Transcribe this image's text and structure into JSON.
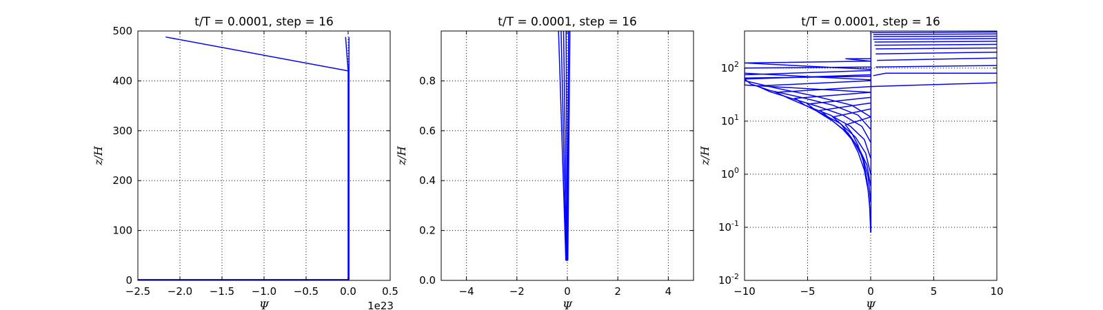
{
  "chart_data": [
    {
      "type": "line",
      "title": "t/T = 0.0001, step = 16",
      "xlabel": "Ψ",
      "ylabel": "z/H",
      "xlim": [
        -2.5,
        0.5
      ],
      "ylim": [
        0,
        500
      ],
      "x_offset_text": "1e23",
      "xticks": [
        -2.5,
        -2.0,
        -1.5,
        -1.0,
        -0.5,
        0.0,
        0.5
      ],
      "xtick_labels": [
        "−2.5",
        "−2.0",
        "−1.5",
        "−1.0",
        "−0.5",
        "0.0",
        "0.5"
      ],
      "yticks": [
        0,
        100,
        200,
        300,
        400,
        500
      ],
      "ytick_labels": [
        "0",
        "100",
        "200",
        "300",
        "400",
        "500"
      ],
      "yscale": "linear",
      "grid": true,
      "series": [
        {
          "x": [
            -2.17,
            0.0,
            0.0
          ],
          "y": [
            488,
            420,
            0
          ]
        },
        {
          "x": [
            -0.03,
            0.0
          ],
          "y": [
            488,
            420
          ]
        },
        {
          "x": [
            0.01,
            0.01
          ],
          "y": [
            488,
            0
          ]
        },
        {
          "x": [
            -2.5,
            0.0
          ],
          "y": [
            1.5,
            1.5
          ]
        }
      ]
    },
    {
      "type": "line",
      "title": "t/T = 0.0001, step = 16",
      "xlabel": "Ψ",
      "ylabel": "z/H",
      "xlim": [
        -5,
        5
      ],
      "ylim": [
        0,
        1.0
      ],
      "xticks": [
        -4,
        -2,
        0,
        2,
        4
      ],
      "xtick_labels": [
        "−4",
        "−2",
        "0",
        "2",
        "4"
      ],
      "yticks": [
        0.0,
        0.2,
        0.4,
        0.6,
        0.8
      ],
      "ytick_labels": [
        "0.0",
        "0.2",
        "0.4",
        "0.6",
        "0.8"
      ],
      "yscale": "linear",
      "grid": true,
      "series": [
        {
          "x": [
            -0.35,
            -0.06
          ],
          "y": [
            1.0,
            0.08
          ]
        },
        {
          "x": [
            -0.25,
            -0.04
          ],
          "y": [
            1.0,
            0.08
          ]
        },
        {
          "x": [
            -0.15,
            -0.02
          ],
          "y": [
            1.0,
            0.08
          ]
        },
        {
          "x": [
            -0.05,
            0.0
          ],
          "y": [
            1.0,
            0.08
          ]
        },
        {
          "x": [
            0.05,
            0.0
          ],
          "y": [
            1.0,
            0.08
          ]
        },
        {
          "x": [
            0.1,
            0.02
          ],
          "y": [
            1.0,
            0.08
          ]
        },
        {
          "x": [
            -0.06,
            0.02
          ],
          "y": [
            0.08,
            0.08
          ]
        }
      ]
    },
    {
      "type": "line",
      "title": "t/T = 0.0001, step = 16",
      "xlabel": "Ψ",
      "ylabel": "z/H",
      "xlim": [
        -10,
        10
      ],
      "ylim": [
        0.01,
        500
      ],
      "xticks": [
        -10,
        -5,
        0,
        5,
        10
      ],
      "xtick_labels": [
        "−10",
        "−5",
        "0",
        "5",
        "10"
      ],
      "yticks": [
        0.01,
        0.1,
        1,
        10,
        100
      ],
      "ytick_labels": [
        [
          "10",
          "-2"
        ],
        [
          "10",
          "-1"
        ],
        [
          "10",
          "0"
        ],
        [
          "10",
          "1"
        ],
        [
          "10",
          "2"
        ]
      ],
      "yscale": "log",
      "grid": true,
      "series": [
        {
          "x": [
            0.02,
            0.02
          ],
          "y": [
            0.08,
            500
          ]
        },
        {
          "x": [
            0,
            -0.1,
            -0.3,
            -0.6,
            -1.0,
            -1.5,
            -2.0,
            0
          ],
          "y": [
            0.08,
            0.3,
            0.8,
            1.8,
            3.5,
            6.0,
            8.5,
            12
          ]
        },
        {
          "x": [
            0,
            -0.2,
            -0.5,
            -1.0,
            -1.6,
            -2.3,
            -3.0,
            0
          ],
          "y": [
            0.15,
            0.5,
            1.2,
            2.6,
            5.0,
            8.5,
            12,
            17
          ]
        },
        {
          "x": [
            0,
            -0.2,
            -0.6,
            -1.3,
            -2.2,
            -3.2,
            -4.0,
            0
          ],
          "y": [
            0.3,
            0.9,
            2.0,
            4.0,
            7.0,
            11,
            16,
            22
          ]
        },
        {
          "x": [
            0,
            -0.3,
            -0.9,
            -1.8,
            -3.0,
            -4.2,
            -5.0,
            0
          ],
          "y": [
            0.6,
            1.5,
            3.0,
            6.0,
            10,
            15,
            21,
            28
          ]
        },
        {
          "x": [
            0,
            -0.4,
            -1.2,
            -2.4,
            -3.9,
            -5.2,
            -6.0,
            0
          ],
          "y": [
            1.0,
            2.5,
            5.0,
            9.0,
            14,
            20,
            27,
            35
          ]
        },
        {
          "x": [
            0,
            -0.5,
            -1.6,
            -3.2,
            -5.0,
            -6.5,
            -7.5,
            0
          ],
          "y": [
            2.0,
            4.5,
            8.0,
            13,
            19,
            27,
            35,
            45
          ]
        },
        {
          "x": [
            0,
            -0.7,
            -2.2,
            -4.2,
            -6.3,
            -8.0,
            -9.0,
            0
          ],
          "y": [
            4.0,
            8.0,
            13,
            19,
            27,
            36,
            46,
            58
          ]
        },
        {
          "x": [
            0,
            -1.0,
            -3.0,
            -5.5,
            -8.0,
            -9.5,
            -10,
            0
          ],
          "y": [
            7.0,
            13,
            20,
            28,
            38,
            50,
            62,
            75
          ]
        },
        {
          "x": [
            0,
            -1.5,
            -4.5,
            -7.5,
            -10,
            -10,
            0
          ],
          "y": [
            12,
            20,
            30,
            42,
            58,
            75,
            90
          ]
        },
        {
          "x": [
            0,
            -10,
            -10,
            0
          ],
          "y": [
            35,
            48,
            65,
            70
          ]
        },
        {
          "x": [
            0,
            -10,
            -10,
            0
          ],
          "y": [
            60,
            80,
            100,
            105
          ]
        },
        {
          "x": [
            0,
            -10,
            0
          ],
          "y": [
            95,
            125,
            135
          ]
        },
        {
          "x": [
            0,
            -2.0,
            0
          ],
          "y": [
            135,
            150,
            150
          ]
        },
        {
          "x": [
            0,
            10
          ],
          "y": [
            45,
            53
          ]
        },
        {
          "x": [
            0.2,
            1.2,
            10
          ],
          "y": [
            72,
            80,
            80
          ]
        },
        {
          "x": [
            0.4,
            10
          ],
          "y": [
            105,
            112
          ]
        },
        {
          "x": [
            0.5,
            10
          ],
          "y": [
            140,
            155
          ]
        },
        {
          "x": [
            0.4,
            10
          ],
          "y": [
            185,
            200
          ]
        },
        {
          "x": [
            0.4,
            10
          ],
          "y": [
            230,
            240
          ]
        },
        {
          "x": [
            0.3,
            10
          ],
          "y": [
            270,
            280
          ]
        },
        {
          "x": [
            0.3,
            10
          ],
          "y": [
            310,
            320
          ]
        },
        {
          "x": [
            0.2,
            10
          ],
          "y": [
            350,
            360
          ]
        },
        {
          "x": [
            0.2,
            10
          ],
          "y": [
            390,
            400
          ]
        },
        {
          "x": [
            0.2,
            10
          ],
          "y": [
            430,
            440
          ]
        },
        {
          "x": [
            0.1,
            10
          ],
          "y": [
            470,
            480
          ]
        }
      ]
    }
  ]
}
